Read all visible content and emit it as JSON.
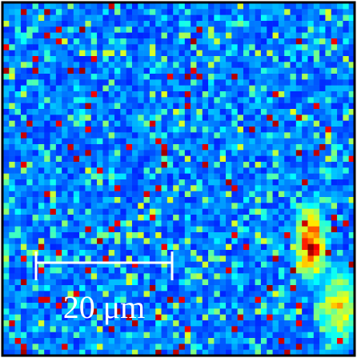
{
  "scale_bar": {
    "label": "20 μm"
  }
}
